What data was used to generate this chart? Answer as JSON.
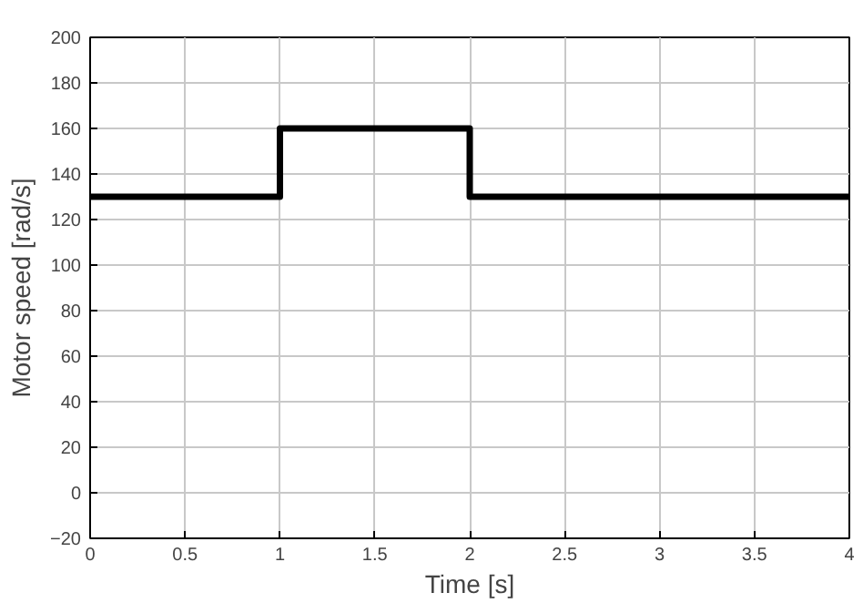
{
  "chart_data": {
    "type": "step",
    "xlabel": "Time [s]",
    "ylabel": "Motor speed [rad/s]",
    "x": [
      0,
      1,
      2,
      4
    ],
    "series": [
      {
        "color": "#000000",
        "values": [
          130,
          160,
          130,
          130
        ]
      }
    ],
    "xlim": [
      0,
      4
    ],
    "xticks": [
      0,
      0.5,
      1,
      1.5,
      2,
      2.5,
      3,
      3.5,
      4
    ],
    "ylim": [
      -20,
      200
    ],
    "yticks": [
      -20,
      0,
      20,
      40,
      60,
      80,
      100,
      120,
      140,
      160,
      180,
      200
    ],
    "grid": true
  }
}
